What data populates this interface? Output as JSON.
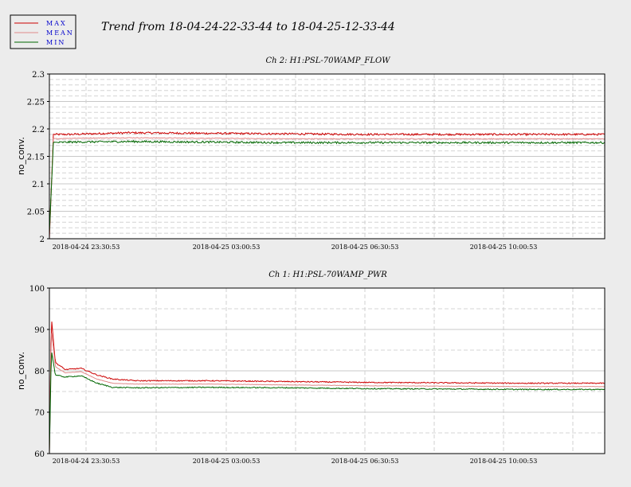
{
  "title": "Trend from 18-04-24-22-33-44 to 18-04-25-12-33-44",
  "legend": [
    {
      "label": "MAX",
      "color": "#cc0000"
    },
    {
      "label": "MEAN",
      "color": "#e08a8a"
    },
    {
      "label": "MIN",
      "color": "#006600"
    }
  ],
  "chart_data": [
    {
      "type": "line",
      "title": "Ch 2: H1:PSL-70WAMP_FLOW",
      "ylabel": "no_conv.",
      "xlabel": "",
      "ylim": [
        2,
        2.3
      ],
      "yticks": [
        "2",
        "2.05",
        "2.1",
        "2.15",
        "2.2",
        "2.25",
        "2.3"
      ],
      "xtick_labels": [
        "2018-04-24 23:30:53",
        "2018-04-25 03:00:53",
        "2018-04-25 06:30:53",
        "2018-04-25 10:00:53"
      ],
      "grid": true,
      "series": [
        {
          "name": "MAX",
          "color": "#cc0000",
          "points": [
            [
              0,
              2.0
            ],
            [
              0.1,
              2.19
            ],
            [
              0.5,
              2.19
            ],
            [
              2,
              2.193
            ],
            [
              4,
              2.192
            ],
            [
              6,
              2.191
            ],
            [
              8,
              2.19
            ],
            [
              10,
              2.19
            ],
            [
              12,
              2.19
            ],
            [
              14,
              2.19
            ]
          ]
        },
        {
          "name": "MEAN",
          "color": "#e08a8a",
          "points": [
            [
              0,
              2.01
            ],
            [
              0.1,
              2.182
            ],
            [
              0.5,
              2.183
            ],
            [
              2,
              2.184
            ],
            [
              4,
              2.183
            ],
            [
              6,
              2.182
            ],
            [
              8,
              2.182
            ],
            [
              10,
              2.182
            ],
            [
              12,
              2.182
            ],
            [
              14,
              2.182
            ]
          ]
        },
        {
          "name": "MIN",
          "color": "#006600",
          "points": [
            [
              0,
              2.01
            ],
            [
              0.1,
              2.175
            ],
            [
              0.5,
              2.176
            ],
            [
              2,
              2.177
            ],
            [
              4,
              2.176
            ],
            [
              6,
              2.175
            ],
            [
              8,
              2.175
            ],
            [
              10,
              2.175
            ],
            [
              12,
              2.175
            ],
            [
              14,
              2.175
            ]
          ]
        }
      ]
    },
    {
      "type": "line",
      "title": "Ch 1: H1:PSL-70WAMP_PWR",
      "ylabel": "no_conv.",
      "xlabel": "",
      "ylim": [
        60,
        100
      ],
      "yticks": [
        "60",
        "70",
        "80",
        "90",
        "100"
      ],
      "xtick_labels": [
        "2018-04-24 23:30:53",
        "2018-04-25 03:00:53",
        "2018-04-25 06:30:53",
        "2018-04-25 10:00:53"
      ],
      "grid": true,
      "series": [
        {
          "name": "MAX",
          "color": "#cc0000",
          "points": [
            [
              0,
              60
            ],
            [
              0.05,
              93
            ],
            [
              0.15,
              82
            ],
            [
              0.4,
              80.3
            ],
            [
              0.8,
              80.6
            ],
            [
              1.2,
              79
            ],
            [
              1.6,
              78
            ],
            [
              2.2,
              77.6
            ],
            [
              4,
              77.6
            ],
            [
              6,
              77.4
            ],
            [
              8,
              77.2
            ],
            [
              10,
              77.1
            ],
            [
              12,
              77.0
            ],
            [
              14,
              77.0
            ]
          ]
        },
        {
          "name": "MEAN",
          "color": "#e08a8a",
          "points": [
            [
              0,
              60
            ],
            [
              0.05,
              90
            ],
            [
              0.15,
              81
            ],
            [
              0.4,
              79.5
            ],
            [
              0.8,
              79.8
            ],
            [
              1.2,
              78
            ],
            [
              1.6,
              77
            ],
            [
              2.2,
              76.8
            ],
            [
              4,
              76.8
            ],
            [
              6,
              76.6
            ],
            [
              8,
              76.4
            ],
            [
              10,
              76.3
            ],
            [
              12,
              76.2
            ],
            [
              14,
              76.2
            ]
          ]
        },
        {
          "name": "MIN",
          "color": "#006600",
          "points": [
            [
              0,
              60
            ],
            [
              0.05,
              85
            ],
            [
              0.15,
              79
            ],
            [
              0.4,
              78.5
            ],
            [
              0.8,
              78.8
            ],
            [
              1.2,
              77
            ],
            [
              1.6,
              76
            ],
            [
              2.2,
              75.9
            ],
            [
              4,
              76.0
            ],
            [
              6,
              75.9
            ],
            [
              8,
              75.7
            ],
            [
              10,
              75.6
            ],
            [
              12,
              75.5
            ],
            [
              14,
              75.5
            ]
          ]
        }
      ]
    }
  ]
}
